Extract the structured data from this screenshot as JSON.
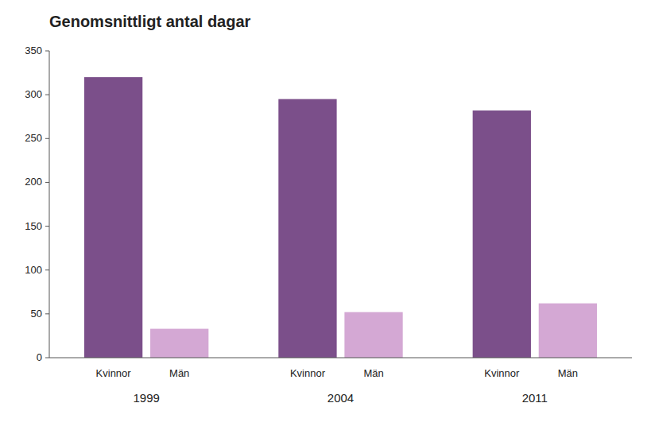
{
  "chart_data": {
    "type": "bar",
    "title": "Genomsnittligt antal dagar",
    "categories": [
      "1999",
      "2004",
      "2011"
    ],
    "series": [
      {
        "name": "Kvinnor",
        "color": "#7B4F8A",
        "values": [
          320,
          295,
          282
        ]
      },
      {
        "name": "Män",
        "color": "#D4A8D4",
        "values": [
          33,
          52,
          62
        ]
      }
    ],
    "ylim": [
      0,
      350
    ],
    "yticks": [
      0,
      50,
      100,
      150,
      200,
      250,
      300,
      350
    ],
    "grid": false
  }
}
